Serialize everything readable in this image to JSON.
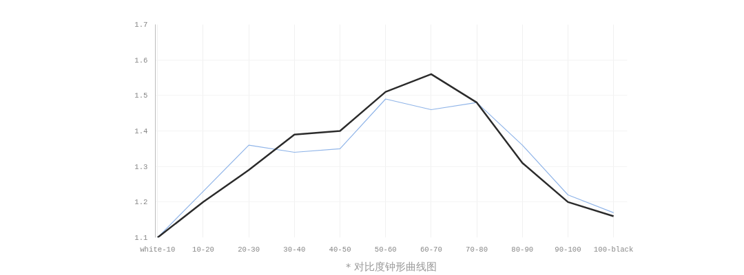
{
  "chart_data": {
    "type": "line",
    "categories": [
      "white-10",
      "10-20",
      "20-30",
      "30-40",
      "40-50",
      "50-60",
      "60-70",
      "70-80",
      "80-90",
      "90-100",
      "100-black"
    ],
    "series": [
      {
        "color": "#8fb4e8",
        "values": [
          1.1,
          1.23,
          1.36,
          1.34,
          1.35,
          1.49,
          1.46,
          1.48,
          1.36,
          1.22,
          1.17
        ]
      },
      {
        "color": "#2b2b2b",
        "values": [
          1.1,
          1.2,
          1.29,
          1.39,
          1.4,
          1.51,
          1.56,
          1.48,
          1.31,
          1.2,
          1.16
        ]
      }
    ],
    "ylim": [
      1.1,
      1.7
    ],
    "yticks": [
      1.1,
      1.2,
      1.3,
      1.4,
      1.5,
      1.6,
      1.7
    ],
    "grid": true,
    "marker": "none",
    "line_style": "solid",
    "annotations": [
      "* 对比度钟形曲线图"
    ]
  }
}
